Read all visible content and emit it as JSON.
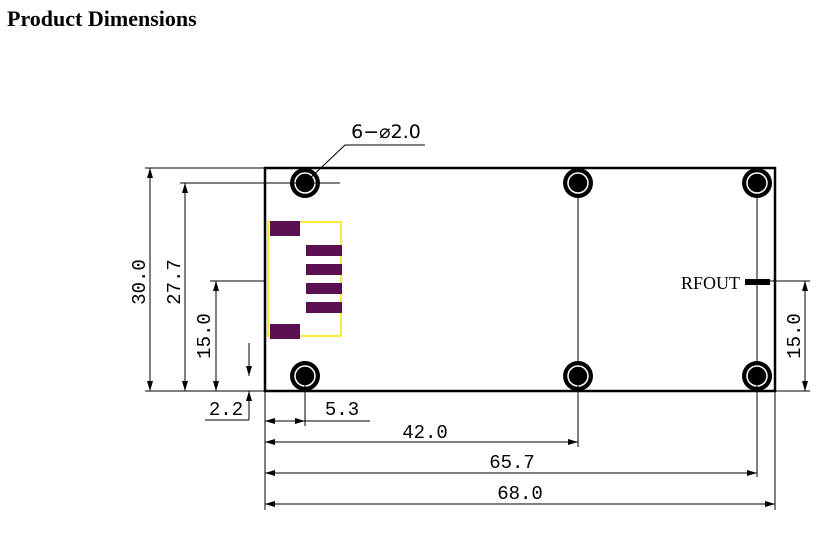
{
  "header": {
    "title": "Product Dimensions"
  },
  "drawing": {
    "hole_callout": "6−⌀2.0",
    "port_label": "RFOUT",
    "dimensions": {
      "board_height": "30.0",
      "hole_span_height": "27.7",
      "rfout_height_left": "15.0",
      "hole_offset_y": "2.2",
      "hole_offset_x": "5.3",
      "middle_hole_x": "42.0",
      "right_hole_x": "65.7",
      "board_width": "68.0",
      "rfout_height_right": "15.0"
    }
  }
}
